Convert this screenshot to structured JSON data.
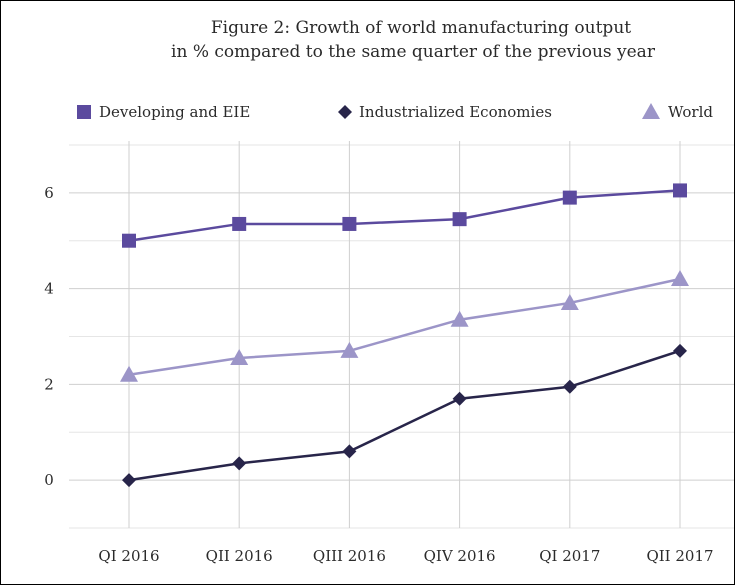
{
  "chart_data": {
    "type": "line",
    "title_line1": "Figure 2: Growth of world manufacturing output",
    "title_line2": "in % compared to the same quarter of the previous year",
    "categories": [
      "QI 2016",
      "QII 2016",
      "QIII 2016",
      "QIV 2016",
      "QI 2017",
      "QII 2017"
    ],
    "ylim": [
      -1,
      7.5
    ],
    "yticks": [
      0,
      2,
      4,
      6
    ],
    "grid": true,
    "legend_position": "top",
    "series": [
      {
        "name": "Developing and EIE",
        "marker": "square",
        "color": "#5b4a9e",
        "values": [
          5.0,
          5.35,
          5.35,
          5.45,
          5.9,
          6.05
        ]
      },
      {
        "name": "Industrialized Economies",
        "marker": "diamond",
        "color": "#28254a",
        "values": [
          0.0,
          0.35,
          0.6,
          1.7,
          1.95,
          2.7
        ]
      },
      {
        "name": "World",
        "marker": "triangle",
        "color": "#9c95c8",
        "values": [
          2.2,
          2.55,
          2.7,
          3.35,
          3.7,
          4.2
        ]
      }
    ]
  }
}
